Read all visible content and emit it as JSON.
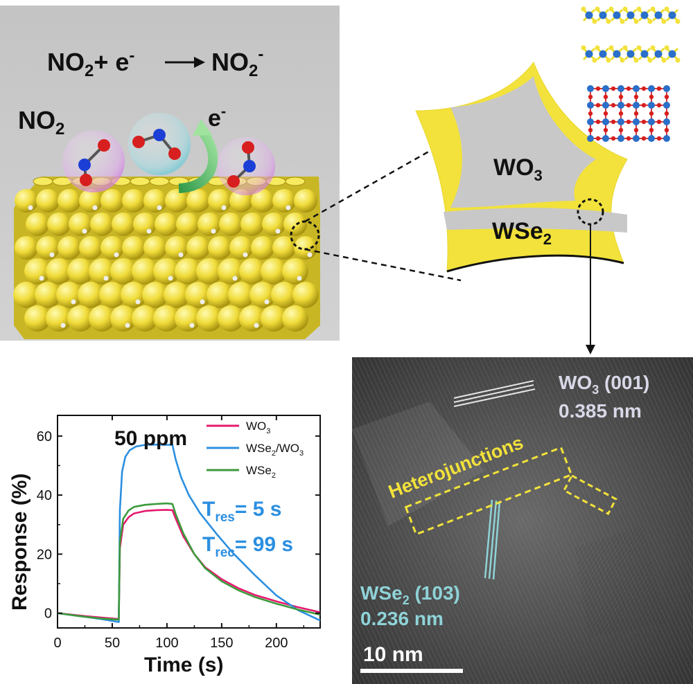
{
  "reaction": {
    "lhs_species": "NO",
    "lhs_sub": "2",
    "plus": "+ e",
    "electron_sup": "-",
    "rhs_species": "NO",
    "rhs_sub": "2",
    "rhs_sup": "-"
  },
  "labels": {
    "no2_species": "NO",
    "no2_sub": "2",
    "electron": "e",
    "electron_sup": "-"
  },
  "particle": {
    "wo3_main": "WO",
    "wo3_sub": "3",
    "wse2_main": "WSe",
    "wse2_sub": "2"
  },
  "tem": {
    "wo3_label_main": "WO",
    "wo3_label_sub": "3",
    "wo3_label_rest": " (001)",
    "wo3_spacing": "0.385 nm",
    "heterojunctions": "Heterojunctions",
    "wse2_label_main": "WSe",
    "wse2_label_sub": "2",
    "wse2_label_rest": " (103)",
    "wse2_spacing": "0.236 nm",
    "scale_bar": "10 nm"
  },
  "colors": {
    "wo3_line": "#e6196e",
    "composite_line": "#2b8fe0",
    "wse2_line": "#3c9a3c",
    "annotation_blue": "#2b8fe0",
    "gold": "#f2e23b",
    "tem_cyan": "#8fd3d8"
  },
  "chart_data": {
    "type": "line",
    "title": "50 ppm",
    "xlabel": "Time (s)",
    "ylabel": "Response (%)",
    "xlim": [
      0,
      240
    ],
    "ylim": [
      -5,
      67
    ],
    "xticks": [
      0,
      50,
      100,
      150,
      200
    ],
    "yticks": [
      0,
      20,
      40,
      60
    ],
    "legend_position": "top-right",
    "series": [
      {
        "name": "WO3",
        "name_main": "WO",
        "name_sub": "3",
        "name_rest": "",
        "color": "#e6196e",
        "points": [
          [
            0,
            0
          ],
          [
            20,
            -0.8
          ],
          [
            40,
            -1.5
          ],
          [
            56,
            -2
          ],
          [
            57,
            22
          ],
          [
            60,
            30
          ],
          [
            65,
            32.5
          ],
          [
            70,
            33.8
          ],
          [
            80,
            34.6
          ],
          [
            90,
            34.9
          ],
          [
            100,
            35
          ],
          [
            105,
            34.9
          ],
          [
            108,
            32
          ],
          [
            115,
            26
          ],
          [
            125,
            20
          ],
          [
            135,
            15.5
          ],
          [
            150,
            11.5
          ],
          [
            165,
            8.5
          ],
          [
            180,
            6.2
          ],
          [
            200,
            4
          ],
          [
            220,
            2
          ],
          [
            240,
            0.3
          ]
        ]
      },
      {
        "name": "WSe2/WO3",
        "name_main": "WSe",
        "name_sub": "2",
        "name_rest": "/WO",
        "name_sub2": "3",
        "color": "#2b8fe0",
        "points": [
          [
            0,
            0
          ],
          [
            20,
            -1
          ],
          [
            40,
            -2
          ],
          [
            56,
            -3
          ],
          [
            57,
            35
          ],
          [
            59,
            48
          ],
          [
            62,
            53
          ],
          [
            66,
            55.2
          ],
          [
            72,
            56.5
          ],
          [
            80,
            57
          ],
          [
            90,
            57.1
          ],
          [
            100,
            57
          ],
          [
            105,
            57
          ],
          [
            108,
            52
          ],
          [
            113,
            46
          ],
          [
            120,
            40
          ],
          [
            130,
            34
          ],
          [
            145,
            27
          ],
          [
            160,
            20.5
          ],
          [
            180,
            13
          ],
          [
            200,
            6
          ],
          [
            220,
            1
          ],
          [
            240,
            -2.5
          ]
        ]
      },
      {
        "name": "WSe2",
        "name_main": "WSe",
        "name_sub": "2",
        "name_rest": "",
        "color": "#3c9a3c",
        "points": [
          [
            0,
            0
          ],
          [
            20,
            -1
          ],
          [
            40,
            -1.8
          ],
          [
            56,
            -2.2
          ],
          [
            57,
            24
          ],
          [
            60,
            32
          ],
          [
            65,
            34.8
          ],
          [
            70,
            36
          ],
          [
            80,
            36.7
          ],
          [
            90,
            37
          ],
          [
            100,
            37.2
          ],
          [
            105,
            37
          ],
          [
            108,
            33.5
          ],
          [
            115,
            27
          ],
          [
            125,
            20
          ],
          [
            135,
            15.2
          ],
          [
            150,
            10.8
          ],
          [
            165,
            7.8
          ],
          [
            180,
            5.5
          ],
          [
            200,
            3.2
          ],
          [
            220,
            1.2
          ],
          [
            240,
            -0.5
          ]
        ]
      }
    ],
    "annotations": {
      "t_res_main": "T",
      "t_res_sub": "res",
      "t_res_value": "= 5 s",
      "t_rec_main": "T",
      "t_rec_sub": "rec",
      "t_rec_value": "= 99 s"
    }
  }
}
